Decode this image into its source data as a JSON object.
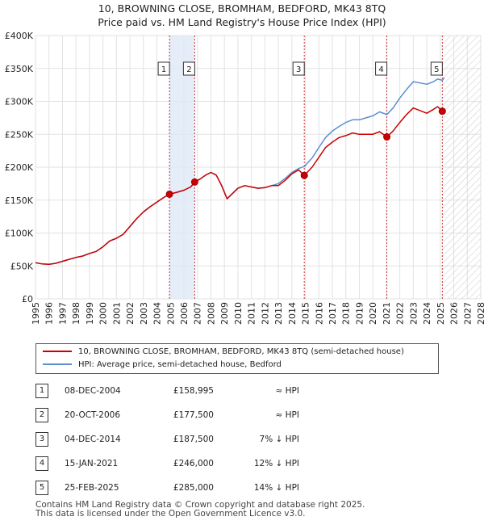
{
  "title_line1": "10, BROWNING CLOSE, BROMHAM, BEDFORD, MK43 8TQ",
  "title_line2": "Price paid vs. HM Land Registry's House Price Index (HPI)",
  "chart_data": {
    "type": "line",
    "xlim": [
      1995,
      2028
    ],
    "ylim": [
      0,
      400000
    ],
    "x_ticks": [
      "1995",
      "1996",
      "1997",
      "1998",
      "1999",
      "2000",
      "2001",
      "2002",
      "2003",
      "2004",
      "2005",
      "2006",
      "2007",
      "2008",
      "2009",
      "2010",
      "2011",
      "2012",
      "2013",
      "2014",
      "2015",
      "2016",
      "2017",
      "2018",
      "2019",
      "2020",
      "2021",
      "2022",
      "2023",
      "2024",
      "2025",
      "2026",
      "2027",
      "2028"
    ],
    "y_ticks": [
      {
        "value": 0,
        "label": "£0"
      },
      {
        "value": 50000,
        "label": "£50K"
      },
      {
        "value": 100000,
        "label": "£100K"
      },
      {
        "value": 150000,
        "label": "£150K"
      },
      {
        "value": 200000,
        "label": "£200K"
      },
      {
        "value": 250000,
        "label": "£250K"
      },
      {
        "value": 300000,
        "label": "£300K"
      },
      {
        "value": 350000,
        "label": "£350K"
      },
      {
        "value": 400000,
        "label": "£400K"
      }
    ],
    "grid": true,
    "series": [
      {
        "name": "10, BROWNING CLOSE, BROMHAM, BEDFORD, MK43 8TQ (semi-detached house)",
        "color": "#cc0000",
        "points": [
          [
            1995.0,
            55000
          ],
          [
            1995.5,
            53000
          ],
          [
            1996.0,
            52500
          ],
          [
            1996.5,
            54000
          ],
          [
            1997.0,
            57000
          ],
          [
            1997.5,
            60000
          ],
          [
            1998.0,
            63000
          ],
          [
            1998.5,
            65000
          ],
          [
            1999.0,
            69000
          ],
          [
            1999.5,
            72000
          ],
          [
            2000.0,
            79000
          ],
          [
            2000.5,
            88000
          ],
          [
            2001.0,
            92000
          ],
          [
            2001.5,
            98000
          ],
          [
            2002.0,
            110000
          ],
          [
            2002.5,
            122000
          ],
          [
            2003.0,
            132000
          ],
          [
            2003.5,
            140000
          ],
          [
            2004.0,
            147000
          ],
          [
            2004.5,
            154000
          ],
          [
            2004.93,
            158995
          ],
          [
            2005.5,
            162000
          ],
          [
            2006.0,
            165000
          ],
          [
            2006.5,
            170000
          ],
          [
            2006.8,
            177500
          ],
          [
            2007.2,
            182000
          ],
          [
            2007.6,
            188000
          ],
          [
            2008.0,
            192000
          ],
          [
            2008.4,
            188000
          ],
          [
            2008.8,
            172000
          ],
          [
            2009.2,
            152000
          ],
          [
            2009.6,
            160000
          ],
          [
            2010.0,
            168000
          ],
          [
            2010.5,
            172000
          ],
          [
            2011.0,
            170000
          ],
          [
            2011.5,
            168000
          ],
          [
            2012.0,
            169000
          ],
          [
            2012.5,
            172000
          ],
          [
            2013.0,
            172000
          ],
          [
            2013.5,
            180000
          ],
          [
            2014.0,
            190000
          ],
          [
            2014.5,
            196000
          ],
          [
            2014.92,
            187500
          ],
          [
            2015.5,
            200000
          ],
          [
            2016.0,
            215000
          ],
          [
            2016.5,
            230000
          ],
          [
            2017.0,
            238000
          ],
          [
            2017.5,
            245000
          ],
          [
            2018.0,
            248000
          ],
          [
            2018.5,
            252000
          ],
          [
            2019.0,
            250000
          ],
          [
            2019.5,
            250000
          ],
          [
            2020.0,
            250000
          ],
          [
            2020.5,
            254000
          ],
          [
            2021.04,
            246000
          ],
          [
            2021.5,
            255000
          ],
          [
            2022.0,
            268000
          ],
          [
            2022.5,
            280000
          ],
          [
            2023.0,
            290000
          ],
          [
            2023.5,
            286000
          ],
          [
            2024.0,
            282000
          ],
          [
            2024.5,
            288000
          ],
          [
            2024.8,
            292000
          ],
          [
            2025.15,
            285000
          ]
        ]
      },
      {
        "name": "HPI: Average price, semi-detached house, Bedford",
        "color": "#5b8fd0",
        "points": [
          [
            1995.0,
            55000
          ],
          [
            1995.5,
            53000
          ],
          [
            1996.0,
            52500
          ],
          [
            1996.5,
            54000
          ],
          [
            1997.0,
            57000
          ],
          [
            1997.5,
            60000
          ],
          [
            1998.0,
            63000
          ],
          [
            1998.5,
            65000
          ],
          [
            1999.0,
            69000
          ],
          [
            1999.5,
            72000
          ],
          [
            2000.0,
            79000
          ],
          [
            2000.5,
            88000
          ],
          [
            2001.0,
            92000
          ],
          [
            2001.5,
            98000
          ],
          [
            2002.0,
            110000
          ],
          [
            2002.5,
            122000
          ],
          [
            2003.0,
            132000
          ],
          [
            2003.5,
            140000
          ],
          [
            2004.0,
            147000
          ],
          [
            2004.5,
            154000
          ],
          [
            2004.93,
            158995
          ],
          [
            2005.5,
            162000
          ],
          [
            2006.0,
            165000
          ],
          [
            2006.5,
            170000
          ],
          [
            2006.8,
            177500
          ],
          [
            2007.2,
            182000
          ],
          [
            2007.6,
            188000
          ],
          [
            2008.0,
            192000
          ],
          [
            2008.4,
            188000
          ],
          [
            2008.8,
            172000
          ],
          [
            2009.2,
            152000
          ],
          [
            2009.6,
            160000
          ],
          [
            2010.0,
            168000
          ],
          [
            2010.5,
            172000
          ],
          [
            2011.0,
            170000
          ],
          [
            2011.5,
            168000
          ],
          [
            2012.0,
            169000
          ],
          [
            2012.5,
            172000
          ],
          [
            2013.0,
            175000
          ],
          [
            2013.5,
            183000
          ],
          [
            2014.0,
            192000
          ],
          [
            2014.5,
            198000
          ],
          [
            2014.92,
            201000
          ],
          [
            2015.5,
            214000
          ],
          [
            2016.0,
            230000
          ],
          [
            2016.5,
            245000
          ],
          [
            2017.0,
            255000
          ],
          [
            2017.5,
            262000
          ],
          [
            2018.0,
            268000
          ],
          [
            2018.5,
            272000
          ],
          [
            2019.0,
            272000
          ],
          [
            2019.5,
            275000
          ],
          [
            2020.0,
            278000
          ],
          [
            2020.5,
            284000
          ],
          [
            2021.04,
            280000
          ],
          [
            2021.5,
            290000
          ],
          [
            2022.0,
            305000
          ],
          [
            2022.5,
            318000
          ],
          [
            2023.0,
            330000
          ],
          [
            2023.5,
            328000
          ],
          [
            2024.0,
            326000
          ],
          [
            2024.5,
            330000
          ],
          [
            2024.8,
            334000
          ],
          [
            2025.15,
            332000
          ],
          [
            2025.3,
            336000
          ]
        ]
      }
    ],
    "sales": [
      {
        "num": "1",
        "x": 2004.93,
        "price": 158995
      },
      {
        "num": "2",
        "x": 2006.8,
        "price": 177500
      },
      {
        "num": "3",
        "x": 2014.92,
        "price": 187500
      },
      {
        "num": "4",
        "x": 2021.04,
        "price": 246000
      },
      {
        "num": "5",
        "x": 2025.15,
        "price": 285000
      }
    ],
    "shaded_spans": [
      [
        2004.93,
        2006.8
      ]
    ],
    "future_from": 2025.15
  },
  "legend": {
    "property_label": "10, BROWNING CLOSE, BROMHAM, BEDFORD, MK43 8TQ (semi-detached house)",
    "hpi_label": "HPI: Average price, semi-detached house, Bedford"
  },
  "transactions": [
    {
      "num": "1",
      "date": "08-DEC-2004",
      "price": "£158,995",
      "hpi": "≈ HPI"
    },
    {
      "num": "2",
      "date": "20-OCT-2006",
      "price": "£177,500",
      "hpi": "≈ HPI"
    },
    {
      "num": "3",
      "date": "04-DEC-2014",
      "price": "£187,500",
      "hpi": "7% ↓ HPI"
    },
    {
      "num": "4",
      "date": "15-JAN-2021",
      "price": "£246,000",
      "hpi": "12% ↓ HPI"
    },
    {
      "num": "5",
      "date": "25-FEB-2025",
      "price": "£285,000",
      "hpi": "14% ↓ HPI"
    }
  ],
  "footer": {
    "line1": "Contains HM Land Registry data © Crown copyright and database right 2025.",
    "line2": "This data is licensed under the Open Government Licence v3.0."
  }
}
